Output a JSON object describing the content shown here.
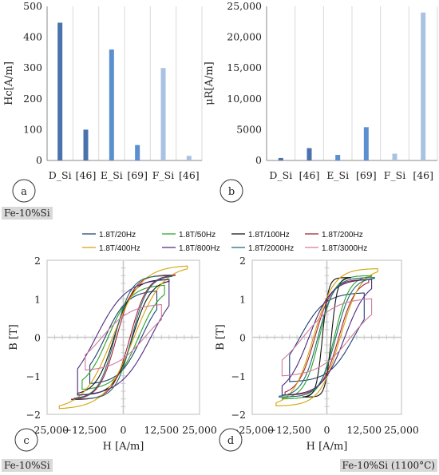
{
  "panel_letters": [
    "a",
    "b",
    "c",
    "d"
  ],
  "material_labels": {
    "top": "Fe-10%Si",
    "bottom_left": "Fe-10%Si",
    "bottom_right": "Fe-10%Si (1100°C)"
  },
  "colors": {
    "dark_blue": "#4a72ad",
    "mid_blue": "#5b8fd0",
    "light_blue": "#a9c2e2"
  },
  "legend_order": [
    "1.8T/20Hz",
    "1.8T/50Hz",
    "1.8T/100Hz",
    "1.8T/200Hz",
    "1.8T/400Hz",
    "1.8T/800Hz",
    "1.8T/2000Hz",
    "1.8T/3000Hz"
  ],
  "chart_data": [
    {
      "id": "a",
      "type": "bar",
      "categories": [
        "D_Si",
        "[46]",
        "E_Si",
        "[69]",
        "F_Si",
        "[46]"
      ],
      "values": [
        447,
        100,
        360,
        50,
        300,
        15
      ],
      "bar_colors": [
        "#4a72ad",
        "#4a72ad",
        "#5b8fd0",
        "#5b8fd0",
        "#a9c2e2",
        "#a9c2e2"
      ],
      "ylabel": "Hc[A/m]",
      "ylim": [
        0,
        500
      ],
      "yticks": [
        "0",
        "100",
        "200",
        "300",
        "400",
        "500"
      ],
      "grid": "vertical"
    },
    {
      "id": "b",
      "type": "bar",
      "categories": [
        "D_Si",
        "[46]",
        "E_Si",
        "[69]",
        "F_Si",
        "[46]"
      ],
      "values": [
        400,
        2000,
        900,
        5400,
        1100,
        24000
      ],
      "bar_colors": [
        "#4a72ad",
        "#4a72ad",
        "#5b8fd0",
        "#5b8fd0",
        "#a9c2e2",
        "#a9c2e2"
      ],
      "ylabel": "μR[A/m]",
      "ylim": [
        0,
        25000
      ],
      "yticks": [
        "0",
        "5000",
        "10,000",
        "15,000",
        "20,000",
        "25,000"
      ],
      "grid": "vertical"
    },
    {
      "id": "c",
      "type": "line",
      "xlabel": "H [A/m]",
      "ylabel": "B [T]",
      "xlim": [
        -25000,
        25000
      ],
      "ylim": [
        -2,
        2
      ],
      "xticks": [
        "−25,000",
        "−12,500",
        "0",
        "12,500",
        "25,000"
      ],
      "yticks": [
        "−2",
        "−1",
        "0",
        "1",
        "2"
      ],
      "series": [
        {
          "name": "1.8T/20Hz",
          "color": "#1f3f73",
          "Hmax": 11000,
          "Bmax": 1.2,
          "Hc": 6000,
          "ex": 1.5
        },
        {
          "name": "1.8T/50Hz",
          "color": "#2ca02c",
          "Hmax": 13500,
          "Bmax": 1.35,
          "Hc": 5000,
          "ex": 1.8
        },
        {
          "name": "1.8T/100Hz",
          "color": "#111111",
          "Hmax": 15000,
          "Bmax": 1.5,
          "Hc": 3000,
          "ex": 2.5
        },
        {
          "name": "1.8T/200Hz",
          "color": "#a81e35",
          "Hmax": 17000,
          "Bmax": 1.62,
          "Hc": 2200,
          "ex": 3.0
        },
        {
          "name": "1.8T/400Hz",
          "color": "#d4a40a",
          "Hmax": 21000,
          "Bmax": 1.85,
          "Hc": 3500,
          "ex": 2.2
        },
        {
          "name": "1.8T/800Hz",
          "color": "#4b2a7b",
          "Hmax": 15000,
          "Bmax": 1.5,
          "Hc": 9000,
          "ex": 1.5
        },
        {
          "name": "1.8T/2000Hz",
          "color": "#1f6b73",
          "Hmax": 16000,
          "Bmax": 1.6,
          "Hc": 2800,
          "ex": 3.0
        },
        {
          "name": "1.8T/3000Hz",
          "color": "#d07aa0",
          "Hmax": 12500,
          "Bmax": 0.85,
          "Hc": 7000,
          "ex": 1.3
        }
      ]
    },
    {
      "id": "d",
      "type": "line",
      "xlabel": "H [A/m]",
      "ylabel": "B [T]",
      "xlim": [
        -25000,
        25000
      ],
      "ylim": [
        -2,
        2
      ],
      "xticks": [
        "−25,000",
        "−12,500",
        "0",
        "12,500",
        "25,000"
      ],
      "yticks": [
        "−2",
        "−1",
        "0",
        "1",
        "2"
      ],
      "series": [
        {
          "name": "1.8T/20Hz",
          "color": "#1f3f73",
          "Hmax": 12500,
          "Bmax": 1.15,
          "Hc": 9000,
          "ex": 1.5
        },
        {
          "name": "1.8T/50Hz",
          "color": "#2ca02c",
          "Hmax": 15000,
          "Bmax": 1.6,
          "Hc": 2500,
          "ex": 3.0
        },
        {
          "name": "1.8T/100Hz",
          "color": "#111111",
          "Hmax": 8000,
          "Bmax": 1.55,
          "Hc": 1500,
          "ex": 4.0
        },
        {
          "name": "1.8T/200Hz",
          "color": "#a81e35",
          "Hmax": 14000,
          "Bmax": 1.5,
          "Hc": 4000,
          "ex": 2.5
        },
        {
          "name": "1.8T/400Hz",
          "color": "#d4a40a",
          "Hmax": 17000,
          "Bmax": 1.78,
          "Hc": 4500,
          "ex": 2.5
        },
        {
          "name": "1.8T/800Hz",
          "color": "#4b2a7b",
          "Hmax": 15000,
          "Bmax": 1.5,
          "Hc": 6000,
          "ex": 2.0
        },
        {
          "name": "1.8T/2000Hz",
          "color": "#1f6b73",
          "Hmax": 16000,
          "Bmax": 1.55,
          "Hc": 3000,
          "ex": 3.0
        },
        {
          "name": "1.8T/3000Hz",
          "color": "#d07aa0",
          "Hmax": 15000,
          "Bmax": 1.0,
          "Hc": 8000,
          "ex": 1.4
        }
      ]
    }
  ]
}
